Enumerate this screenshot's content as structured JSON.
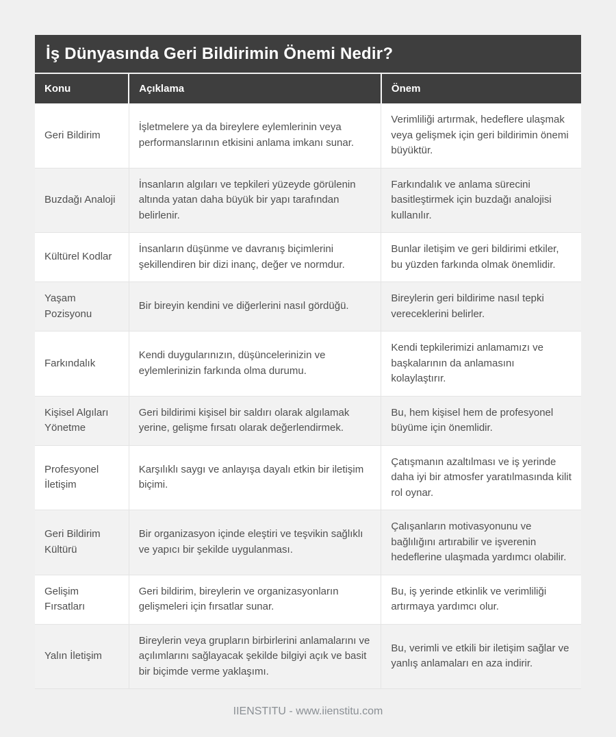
{
  "page": {
    "title": "İş Dünyasında Geri Bildirimin Önemi Nedir?",
    "footer": "IIENSTITU - www.iienstitu.com"
  },
  "table": {
    "columns": [
      {
        "key": "konu",
        "label": "Konu"
      },
      {
        "key": "aciklama",
        "label": "Açıklama"
      },
      {
        "key": "onem",
        "label": "Önem"
      }
    ],
    "rows": [
      {
        "konu": "Geri Bildirim",
        "aciklama": "İşletmelere ya da bireylere eylemlerinin veya performanslarının etkisini anlama imkanı sunar.",
        "onem": "Verimliliği artırmak, hedeflere ulaşmak veya gelişmek için geri bildirimin önemi büyüktür."
      },
      {
        "konu": "Buzdağı Analoji",
        "aciklama": "İnsanların algıları ve tepkileri yüzeyde görülenin altında yatan daha büyük bir yapı tarafından belirlenir.",
        "onem": "Farkındalık ve anlama sürecini basitleştirmek için buzdağı analojisi kullanılır."
      },
      {
        "konu": "Kültürel Kodlar",
        "aciklama": "İnsanların düşünme ve davranış biçimlerini şekillendiren bir dizi inanç, değer ve normdur.",
        "onem": "Bunlar iletişim ve geri bildirimi etkiler, bu yüzden farkında olmak önemlidir."
      },
      {
        "konu": "Yaşam Pozisyonu",
        "aciklama": "Bir bireyin kendini ve diğerlerini nasıl gördüğü.",
        "onem": "Bireylerin geri bildirime nasıl tepki vereceklerini belirler."
      },
      {
        "konu": "Farkındalık",
        "aciklama": "Kendi duygularınızın, düşüncelerinizin ve eylemlerinizin farkında olma durumu.",
        "onem": "Kendi tepkilerimizi anlamamızı ve başkalarının da anlamasını kolaylaştırır."
      },
      {
        "konu": "Kişisel Algıları Yönetme",
        "aciklama": "Geri bildirimi kişisel bir saldırı olarak algılamak yerine, gelişme fırsatı olarak değerlendirmek.",
        "onem": "Bu, hem kişisel hem de profesyonel büyüme için önemlidir."
      },
      {
        "konu": "Profesyonel İletişim",
        "aciklama": "Karşılıklı saygı ve anlayışa dayalı etkin bir iletişim biçimi.",
        "onem": "Çatışmanın azaltılması ve iş yerinde daha iyi bir atmosfer yaratılmasında kilit rol oynar."
      },
      {
        "konu": "Geri Bildirim Kültürü",
        "aciklama": "Bir organizasyon içinde eleştiri ve teşvikin sağlıklı ve yapıcı bir şekilde uygulanması.",
        "onem": "Çalışanların motivasyonunu ve bağlılığını artırabilir ve işverenin hedeflerine ulaşmada yardımcı olabilir."
      },
      {
        "konu": "Gelişim Fırsatları",
        "aciklama": "Geri bildirim, bireylerin ve organizasyonların gelişmeleri için fırsatlar sunar.",
        "onem": "Bu, iş yerinde etkinlik ve verimliliği artırmaya yardımcı olur."
      },
      {
        "konu": "Yalın İletişim",
        "aciklama": "Bireylerin veya grupların birbirlerini anlamalarını ve açılımlarını sağlayacak şekilde bilgiyi açık ve basit bir biçimde verme yaklaşımı.",
        "onem": "Bu, verimli ve etkili bir iletişim sağlar ve yanlış anlamaları en aza indirir."
      }
    ]
  },
  "colors": {
    "page_bg": "#f0f0f0",
    "header_bg": "#3e3e3e",
    "header_text": "#ffffff",
    "row_alt_bg": "#f2f2f2",
    "body_text": "#4f4f4f",
    "border_color": "#e4e4e4",
    "footer_text": "#8a8f94"
  }
}
